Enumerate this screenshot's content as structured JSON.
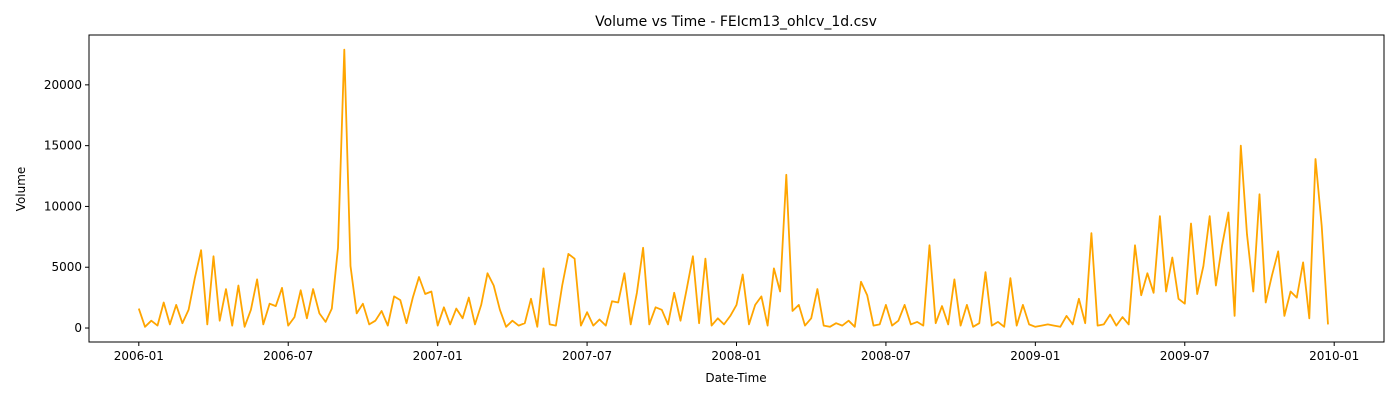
{
  "chart_data": {
    "type": "line",
    "title": "Volume vs Time - FEIcm13_ohlcv_1d.csv",
    "x_label": "Date-Time",
    "y_label": "Volume",
    "x": [
      "2006-01",
      "2006-01",
      "2006-01",
      "2006-01",
      "2006-02",
      "2006-02",
      "2006-02",
      "2006-02",
      "2006-03",
      "2006-03",
      "2006-03",
      "2006-03",
      "2006-04",
      "2006-04",
      "2006-04",
      "2006-04",
      "2006-05",
      "2006-05",
      "2006-05",
      "2006-05",
      "2006-06",
      "2006-06",
      "2006-06",
      "2006-06",
      "2006-07",
      "2006-07",
      "2006-07",
      "2006-07",
      "2006-08",
      "2006-08",
      "2006-08",
      "2006-08",
      "2006-09",
      "2006-09",
      "2006-09",
      "2006-09",
      "2006-10",
      "2006-10",
      "2006-10",
      "2006-10",
      "2006-11",
      "2006-11",
      "2006-11",
      "2006-11",
      "2006-12",
      "2006-12",
      "2006-12",
      "2006-12",
      "2007-01",
      "2007-01",
      "2007-01",
      "2007-01",
      "2007-02",
      "2007-02",
      "2007-02",
      "2007-02",
      "2007-03",
      "2007-03",
      "2007-03",
      "2007-03",
      "2007-04",
      "2007-04",
      "2007-04",
      "2007-04",
      "2007-05",
      "2007-05",
      "2007-05",
      "2007-05",
      "2007-06",
      "2007-06",
      "2007-06",
      "2007-06",
      "2007-07",
      "2007-07",
      "2007-07",
      "2007-07",
      "2007-08",
      "2007-08",
      "2007-08",
      "2007-08",
      "2007-09",
      "2007-09",
      "2007-09",
      "2007-09",
      "2007-10",
      "2007-10",
      "2007-10",
      "2007-10",
      "2007-11",
      "2007-11",
      "2007-11",
      "2007-11",
      "2007-12",
      "2007-12",
      "2007-12",
      "2007-12",
      "2008-01",
      "2008-01",
      "2008-01",
      "2008-01",
      "2008-02",
      "2008-02",
      "2008-02",
      "2008-02",
      "2008-03",
      "2008-03",
      "2008-03",
      "2008-03",
      "2008-04",
      "2008-04",
      "2008-04",
      "2008-04",
      "2008-05",
      "2008-05",
      "2008-05",
      "2008-05",
      "2008-06",
      "2008-06",
      "2008-06",
      "2008-06",
      "2008-07",
      "2008-07",
      "2008-07",
      "2008-07",
      "2008-08",
      "2008-08",
      "2008-08",
      "2008-08",
      "2008-09",
      "2008-09",
      "2008-09",
      "2008-09",
      "2008-10",
      "2008-10",
      "2008-10",
      "2008-10",
      "2008-11",
      "2008-11",
      "2008-11",
      "2008-11",
      "2008-12",
      "2008-12",
      "2008-12",
      "2008-12",
      "2009-01",
      "2009-01",
      "2009-01",
      "2009-01",
      "2009-02",
      "2009-02",
      "2009-02",
      "2009-02",
      "2009-03",
      "2009-03",
      "2009-03",
      "2009-03",
      "2009-04",
      "2009-04",
      "2009-04",
      "2009-04",
      "2009-05",
      "2009-05",
      "2009-05",
      "2009-05",
      "2009-06",
      "2009-06",
      "2009-06",
      "2009-06",
      "2009-07",
      "2009-07",
      "2009-07",
      "2009-07",
      "2009-08",
      "2009-08",
      "2009-08",
      "2009-08",
      "2009-09",
      "2009-09",
      "2009-09",
      "2009-09",
      "2009-10",
      "2009-10",
      "2009-10",
      "2009-10",
      "2009-11",
      "2009-11",
      "2009-11",
      "2009-11",
      "2009-12",
      "2009-12",
      "2009-12",
      "2009-12"
    ],
    "values": [
      1600,
      100,
      600,
      200,
      2100,
      300,
      1900,
      400,
      1500,
      4100,
      6400,
      300,
      5900,
      600,
      3200,
      200,
      3500,
      100,
      1500,
      4000,
      300,
      2000,
      1800,
      3300,
      200,
      900,
      3100,
      800,
      3200,
      1200,
      500,
      1600,
      6600,
      22900,
      5100,
      1200,
      2000,
      300,
      600,
      1400,
      200,
      2600,
      2300,
      400,
      2500,
      4200,
      2800,
      3000,
      200,
      1700,
      300,
      1600,
      800,
      2500,
      300,
      1900,
      4500,
      3500,
      1500,
      100,
      600,
      200,
      400,
      2400,
      100,
      4900,
      300,
      200,
      3500,
      6100,
      5700,
      200,
      1300,
      200,
      700,
      200,
      2200,
      2100,
      4500,
      300,
      2900,
      6600,
      300,
      1700,
      1500,
      300,
      2900,
      600,
      3200,
      5900,
      400,
      5700,
      200,
      800,
      300,
      1000,
      1900,
      4400,
      300,
      1900,
      2600,
      200,
      4900,
      3000,
      12600,
      1400,
      1900,
      200,
      800,
      3200,
      200,
      100,
      400,
      200,
      600,
      100,
      3800,
      2700,
      200,
      300,
      1900,
      200,
      600,
      1900,
      300,
      500,
      200,
      6800,
      400,
      1800,
      300,
      4000,
      200,
      1900,
      100,
      400,
      4600,
      200,
      500,
      100,
      4100,
      200,
      1900,
      300,
      100,
      200,
      300,
      200,
      100,
      1000,
      300,
      2400,
      400,
      7800,
      200,
      300,
      1100,
      200,
      900,
      300,
      6800,
      2700,
      4500,
      2900,
      9200,
      3000,
      5800,
      2400,
      2000,
      8600,
      2800,
      5100,
      9200,
      3500,
      6800,
      9500,
      1000,
      15000,
      7700,
      3000,
      11000,
      2100,
      4300,
      6300,
      1000,
      3000,
      2500,
      5400,
      800,
      13900,
      8400,
      300
    ],
    "color": "#ffa500",
    "xlim": [
      "2005-11",
      "2010-03"
    ],
    "xticks": [
      "2006-01",
      "2006-07",
      "2007-01",
      "2007-07",
      "2008-01",
      "2008-07",
      "2009-01",
      "2009-07",
      "2010-01"
    ],
    "ylim": [
      -1150,
      24100
    ],
    "yticks": [
      0,
      5000,
      10000,
      15000,
      20000
    ]
  }
}
